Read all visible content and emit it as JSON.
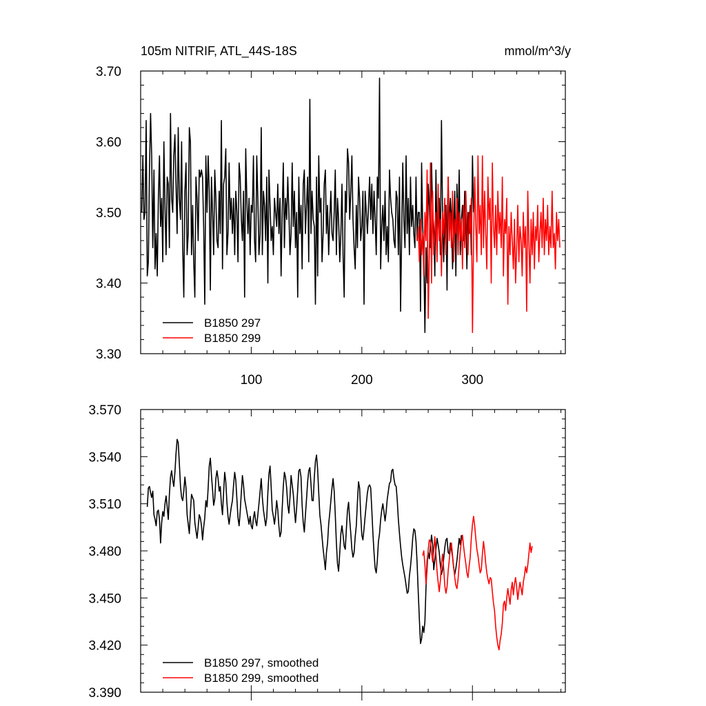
{
  "colors": {
    "series_a": "#000000",
    "series_b": "#ff0000"
  },
  "chart_data": [
    {
      "type": "line",
      "title": "105m NITRIF, ATL_44S-18S",
      "units": "mmol/m^3/y",
      "xlim": [
        0,
        384
      ],
      "ylim": [
        3.3,
        3.7
      ],
      "yticks": [
        3.3,
        3.4,
        3.5,
        3.6,
        3.7
      ],
      "ytick_labels": [
        "3.30",
        "3.40",
        "3.50",
        "3.60",
        "3.70"
      ],
      "xticks": [
        100,
        200,
        300
      ],
      "xtick_labels": [
        "100",
        "200",
        "300"
      ],
      "legend_placement": "bottom-left",
      "series": [
        {
          "name": "B1850 297",
          "color": "#000000",
          "x_start": 1,
          "values": [
            3.5,
            3.58,
            3.49,
            3.5,
            3.63,
            3.41,
            3.43,
            3.56,
            3.64,
            3.58,
            3.45,
            3.56,
            3.42,
            3.47,
            3.41,
            3.52,
            3.58,
            3.48,
            3.52,
            3.43,
            3.6,
            3.51,
            3.44,
            3.55,
            3.54,
            3.45,
            3.64,
            3.52,
            3.5,
            3.58,
            3.61,
            3.54,
            3.47,
            3.62,
            3.52,
            3.49,
            3.6,
            3.45,
            3.38,
            3.53,
            3.57,
            3.44,
            3.47,
            3.62,
            3.6,
            3.44,
            3.51,
            3.43,
            3.38,
            3.55,
            3.52,
            3.46,
            3.56,
            3.55,
            3.56,
            3.55,
            3.48,
            3.37,
            3.58,
            3.5,
            3.58,
            3.53,
            3.39,
            3.55,
            3.5,
            3.44,
            3.56,
            3.52,
            3.46,
            3.45,
            3.53,
            3.47,
            3.63,
            3.42,
            3.54,
            3.55,
            3.59,
            3.44,
            3.47,
            3.57,
            3.49,
            3.52,
            3.47,
            3.52,
            3.44,
            3.53,
            3.5,
            3.43,
            3.57,
            3.55,
            3.49,
            3.46,
            3.53,
            3.38,
            3.59,
            3.52,
            3.47,
            3.52,
            3.44,
            3.51,
            3.5,
            3.58,
            3.46,
            3.43,
            3.58,
            3.52,
            3.44,
            3.47,
            3.62,
            3.44,
            3.53,
            3.51,
            3.46,
            3.55,
            3.4,
            3.56,
            3.51,
            3.46,
            3.48,
            3.44,
            3.52,
            3.5,
            3.48,
            3.54,
            3.47,
            3.52,
            3.41,
            3.5,
            3.57,
            3.45,
            3.52,
            3.49,
            3.55,
            3.5,
            3.44,
            3.47,
            3.57,
            3.48,
            3.53,
            3.45,
            3.5,
            3.38,
            3.55,
            3.47,
            3.51,
            3.42,
            3.54,
            3.56,
            3.47,
            3.51,
            3.55,
            3.43,
            3.66,
            3.47,
            3.53,
            3.49,
            3.48,
            3.37,
            3.55,
            3.41,
            3.58,
            3.5,
            3.52,
            3.43,
            3.47,
            3.54,
            3.56,
            3.47,
            3.51,
            3.44,
            3.49,
            3.53,
            3.47,
            3.46,
            3.5,
            3.56,
            3.44,
            3.52,
            3.49,
            3.43,
            3.47,
            3.54,
            3.44,
            3.38,
            3.53,
            3.5,
            3.59,
            3.57,
            3.49,
            3.53,
            3.58,
            3.49,
            3.45,
            3.42,
            3.51,
            3.45,
            3.55,
            3.52,
            3.46,
            3.48,
            3.53,
            3.37,
            3.53,
            3.5,
            3.47,
            3.51,
            3.55,
            3.49,
            3.54,
            3.47,
            3.53,
            3.49,
            3.44,
            3.55,
            3.52,
            3.69,
            3.42,
            3.48,
            3.51,
            3.46,
            3.53,
            3.44,
            3.48,
            3.43,
            3.56,
            3.52,
            3.5,
            3.49,
            3.46,
            3.45,
            3.53,
            3.52,
            3.44,
            3.55,
            3.36,
            3.47,
            3.57,
            3.49,
            3.45,
            3.58,
            3.47,
            3.52,
            3.44,
            3.55,
            3.48,
            3.51,
            3.47,
            3.45,
            3.55,
            3.46,
            3.5,
            3.5,
            3.36,
            3.57,
            3.48,
            3.44,
            3.33,
            3.45,
            3.4,
            3.54,
            3.51,
            3.45,
            3.57,
            3.5,
            3.48,
            3.41,
            3.56,
            3.46,
            3.49,
            3.52,
            3.44,
            3.63,
            3.5,
            3.43,
            3.48,
            3.51,
            3.39,
            3.55,
            3.48,
            3.52,
            3.49,
            3.42,
            3.48,
            3.53,
            3.41,
            3.54,
            3.47,
            3.56,
            3.44,
            3.49,
            3.51,
            3.46,
            3.53,
            3.49,
            3.42,
            3.5,
            3.47,
            3.51,
            3.44,
            3.58,
            3.5
          ]
        },
        {
          "name": "B1850 299",
          "color": "#ff0000",
          "x_start": 250,
          "values": [
            3.46,
            3.48,
            3.43,
            3.49,
            3.44,
            3.47,
            3.41,
            3.5,
            3.46,
            3.56,
            3.35,
            3.44,
            3.57,
            3.4,
            3.53,
            3.44,
            3.47,
            3.5,
            3.43,
            3.54,
            3.46,
            3.49,
            3.41,
            3.5,
            3.47,
            3.52,
            3.44,
            3.48,
            3.55,
            3.46,
            3.5,
            3.45,
            3.53,
            3.43,
            3.49,
            3.47,
            3.52,
            3.44,
            3.5,
            3.46,
            3.49,
            3.42,
            3.51,
            3.45,
            3.53,
            3.48,
            3.44,
            3.5,
            3.47,
            3.52,
            3.33,
            3.46,
            3.55,
            3.48,
            3.43,
            3.58,
            3.47,
            3.51,
            3.44,
            3.58,
            3.45,
            3.53,
            3.47,
            3.42,
            3.55,
            3.49,
            3.52,
            3.4,
            3.57,
            3.48,
            3.45,
            3.51,
            3.44,
            3.53,
            3.47,
            3.5,
            3.45,
            3.55,
            3.41,
            3.49,
            3.47,
            3.52,
            3.37,
            3.48,
            3.44,
            3.5,
            3.46,
            3.42,
            3.49,
            3.4,
            3.45,
            3.51,
            3.43,
            3.48,
            3.46,
            3.41,
            3.5,
            3.45,
            3.48,
            3.36,
            3.53,
            3.46,
            3.4,
            3.49,
            3.44,
            3.5,
            3.42,
            3.48,
            3.46,
            3.51,
            3.43,
            3.47,
            3.5,
            3.45,
            3.52,
            3.44,
            3.49,
            3.46,
            3.51,
            3.44,
            3.48,
            3.45,
            3.53,
            3.45,
            3.47,
            3.42,
            3.5,
            3.46,
            3.49,
            3.45
          ]
        }
      ]
    },
    {
      "type": "line",
      "xlim": [
        0,
        384
      ],
      "ylim": [
        3.39,
        3.57
      ],
      "yticks": [
        3.39,
        3.42,
        3.45,
        3.48,
        3.51,
        3.54,
        3.57
      ],
      "ytick_labels": [
        "3.390",
        "3.420",
        "3.450",
        "3.480",
        "3.510",
        "3.540",
        "3.570"
      ],
      "legend_placement": "bottom-left",
      "series": [
        {
          "name": "B1850 297, smoothed",
          "color": "#000000",
          "x_start": 6,
          "values": [
            3.508,
            3.52,
            3.521,
            3.517,
            3.514,
            3.518,
            3.503,
            3.5,
            3.496,
            3.505,
            3.506,
            3.5,
            3.485,
            3.498,
            3.505,
            3.502,
            3.51,
            3.515,
            3.508,
            3.5,
            3.516,
            3.527,
            3.531,
            3.525,
            3.521,
            3.53,
            3.542,
            3.551,
            3.549,
            3.536,
            3.521,
            3.514,
            3.512,
            3.518,
            3.527,
            3.52,
            3.503,
            3.497,
            3.491,
            3.505,
            3.516,
            3.514,
            3.512,
            3.498,
            3.493,
            3.488,
            3.495,
            3.503,
            3.501,
            3.496,
            3.487,
            3.495,
            3.501,
            3.512,
            3.508,
            3.52,
            3.534,
            3.539,
            3.528,
            3.519,
            3.509,
            3.513,
            3.526,
            3.531,
            3.526,
            3.518,
            3.521,
            3.51,
            3.503,
            3.517,
            3.53,
            3.524,
            3.511,
            3.502,
            3.497,
            3.503,
            3.508,
            3.512,
            3.522,
            3.53,
            3.525,
            3.513,
            3.501,
            3.496,
            3.505,
            3.517,
            3.528,
            3.522,
            3.513,
            3.509,
            3.505,
            3.501,
            3.497,
            3.502,
            3.496,
            3.494,
            3.501,
            3.505,
            3.499,
            3.496,
            3.503,
            3.51,
            3.518,
            3.526,
            3.514,
            3.506,
            3.501,
            3.496,
            3.501,
            3.517,
            3.529,
            3.534,
            3.521,
            3.506,
            3.502,
            3.497,
            3.503,
            3.512,
            3.506,
            3.496,
            3.489,
            3.492,
            3.507,
            3.521,
            3.53,
            3.527,
            3.52,
            3.509,
            3.504,
            3.514,
            3.528,
            3.522,
            3.516,
            3.506,
            3.498,
            3.507,
            3.519,
            3.531,
            3.532,
            3.527,
            3.509,
            3.498,
            3.492,
            3.503,
            3.513,
            3.524,
            3.531,
            3.533,
            3.523,
            3.512,
            3.512,
            3.527,
            3.537,
            3.541,
            3.532,
            3.517,
            3.503,
            3.497,
            3.489,
            3.481,
            3.475,
            3.468,
            3.479,
            3.485,
            3.497,
            3.504,
            3.512,
            3.52,
            3.526,
            3.518,
            3.503,
            3.485,
            3.472,
            3.467,
            3.479,
            3.491,
            3.496,
            3.49,
            3.483,
            3.481,
            3.494,
            3.506,
            3.511,
            3.5,
            3.491,
            3.481,
            3.476,
            3.479,
            3.489,
            3.496,
            3.511,
            3.524,
            3.52,
            3.503,
            3.49,
            3.487,
            3.494,
            3.502,
            3.51,
            3.517,
            3.521,
            3.522,
            3.52,
            3.506,
            3.491,
            3.479,
            3.469,
            3.466,
            3.474,
            3.486,
            3.491,
            3.5,
            3.506,
            3.51,
            3.505,
            3.499,
            3.505,
            3.513,
            3.518,
            3.523,
            3.524,
            3.531,
            3.532,
            3.526,
            3.522,
            3.521,
            3.512,
            3.5,
            3.491,
            3.483,
            3.476,
            3.471,
            3.467,
            3.463,
            3.458,
            3.453,
            3.454,
            3.464,
            3.47,
            3.478,
            3.488,
            3.494,
            3.493,
            3.486,
            3.472,
            3.454,
            3.436,
            3.421,
            3.424,
            3.432,
            3.428,
            3.435,
            3.457,
            3.474,
            3.479,
            3.475,
            3.483,
            3.49,
            3.484,
            3.468,
            3.474,
            3.481,
            3.488,
            3.484,
            3.479,
            3.471,
            3.465,
            3.468,
            3.475,
            3.482,
            3.487,
            3.488,
            3.479,
            3.478,
            3.485,
            3.481,
            3.476,
            3.469,
            3.465,
            3.469,
            3.474,
            3.481,
            3.488,
            3.484,
            3.49
          ]
        },
        {
          "name": "B1850 299, smoothed",
          "color": "#ff0000",
          "x_start": 255,
          "values": [
            3.477,
            3.48,
            3.471,
            3.459,
            3.468,
            3.481,
            3.487,
            3.486,
            3.479,
            3.473,
            3.48,
            3.489,
            3.478,
            3.467,
            3.46,
            3.454,
            3.461,
            3.472,
            3.478,
            3.469,
            3.458,
            3.453,
            3.457,
            3.467,
            3.474,
            3.481,
            3.485,
            3.477,
            3.47,
            3.463,
            3.458,
            3.456,
            3.462,
            3.471,
            3.48,
            3.486,
            3.49,
            3.483,
            3.477,
            3.472,
            3.466,
            3.463,
            3.47,
            3.476,
            3.488,
            3.497,
            3.502,
            3.496,
            3.488,
            3.481,
            3.477,
            3.471,
            3.466,
            3.468,
            3.478,
            3.486,
            3.48,
            3.472,
            3.466,
            3.462,
            3.459,
            3.463,
            3.462,
            3.454,
            3.447,
            3.442,
            3.432,
            3.425,
            3.42,
            3.417,
            3.423,
            3.427,
            3.434,
            3.446,
            3.448,
            3.442,
            3.45,
            3.456,
            3.451,
            3.446,
            3.455,
            3.46,
            3.452,
            3.459,
            3.463,
            3.457,
            3.449,
            3.455,
            3.46,
            3.456,
            3.452,
            3.46,
            3.464,
            3.47,
            3.466,
            3.471,
            3.478,
            3.485,
            3.479,
            3.483
          ]
        }
      ]
    }
  ]
}
